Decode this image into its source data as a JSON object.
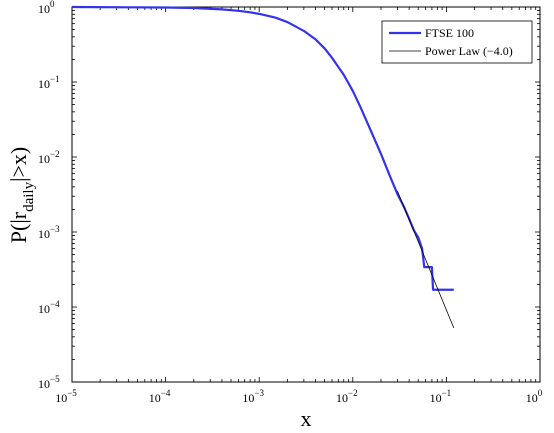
{
  "chart_data": {
    "type": "line",
    "xscale": "log",
    "yscale": "log",
    "xlim": [
      1e-05,
      1
    ],
    "ylim": [
      1e-05,
      1
    ],
    "xlabel": "x",
    "ylabel": {
      "prefix": "P(|r",
      "sub": "daily",
      "suffix": "|>x)"
    },
    "x_ticks": [
      {
        "value": 1e-05,
        "base": "10",
        "exp": "−5"
      },
      {
        "value": 0.0001,
        "base": "10",
        "exp": "−4"
      },
      {
        "value": 0.001,
        "base": "10",
        "exp": "−3"
      },
      {
        "value": 0.01,
        "base": "10",
        "exp": "−2"
      },
      {
        "value": 0.1,
        "base": "10",
        "exp": "−1"
      },
      {
        "value": 1,
        "base": "10",
        "exp": "0"
      }
    ],
    "y_ticks": [
      {
        "value": 1e-05,
        "base": "10",
        "exp": "−5"
      },
      {
        "value": 0.0001,
        "base": "10",
        "exp": "−4"
      },
      {
        "value": 0.001,
        "base": "10",
        "exp": "−3"
      },
      {
        "value": 0.01,
        "base": "10",
        "exp": "−2"
      },
      {
        "value": 0.1,
        "base": "10",
        "exp": "−1"
      },
      {
        "value": 1,
        "base": "10",
        "exp": "0"
      }
    ],
    "grid": false,
    "legend_position": "top-right",
    "series": [
      {
        "name": "FTSE 100",
        "color": "#3333ee",
        "style": "solid-thick",
        "points": [
          [
            1e-05,
            1.0
          ],
          [
            0.0001,
            0.985
          ],
          [
            0.0002,
            0.97
          ],
          [
            0.0004,
            0.93
          ],
          [
            0.0006,
            0.89
          ],
          [
            0.0008,
            0.85
          ],
          [
            0.001,
            0.81
          ],
          [
            0.0015,
            0.72
          ],
          [
            0.002,
            0.63
          ],
          [
            0.003,
            0.48
          ],
          [
            0.004,
            0.37
          ],
          [
            0.005,
            0.28
          ],
          [
            0.006,
            0.21
          ],
          [
            0.008,
            0.125
          ],
          [
            0.01,
            0.076
          ],
          [
            0.012,
            0.047
          ],
          [
            0.015,
            0.025
          ],
          [
            0.02,
            0.011
          ],
          [
            0.025,
            0.0055
          ],
          [
            0.03,
            0.0032
          ],
          [
            0.035,
            0.0022
          ],
          [
            0.04,
            0.0015
          ],
          [
            0.045,
            0.00105
          ],
          [
            0.05,
            0.00085
          ],
          [
            0.055,
            0.0006
          ],
          [
            0.058,
            0.00034
          ],
          [
            0.07,
            0.00034
          ],
          [
            0.072,
            0.00017
          ],
          [
            0.12,
            0.00017
          ]
        ]
      },
      {
        "name": "Power Law (−4.0)",
        "color": "#000000",
        "style": "solid-thin",
        "exponent": -4.0,
        "points": [
          [
            0.03,
            0.0035
          ],
          [
            0.12,
            5.25e-05
          ]
        ]
      }
    ]
  }
}
